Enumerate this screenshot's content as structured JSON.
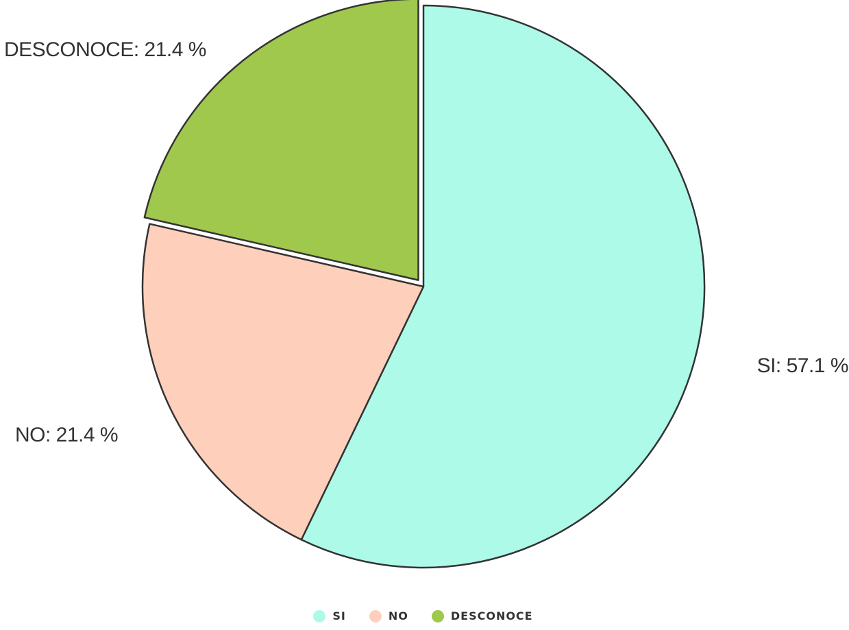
{
  "chart_data": {
    "type": "pie",
    "start_angle_deg": 0,
    "direction": "clockwise",
    "exploded": [
      "DESCONOCE"
    ],
    "slices": [
      {
        "name": "SI",
        "value": 57.1,
        "label": "SI: 57.1 %",
        "color": "#adfae9"
      },
      {
        "name": "NO",
        "value": 21.4,
        "label": "NO: 21.4 %",
        "color": "#fed0bb"
      },
      {
        "name": "DESCONOCE",
        "value": 21.4,
        "label": "DESCONOCE: 21.4 %",
        "color": "#9fc84d"
      }
    ],
    "legend": {
      "placement": "bottom",
      "items": [
        "SI",
        "NO",
        "DESCONOCE"
      ]
    },
    "stroke_color": "#333333"
  }
}
